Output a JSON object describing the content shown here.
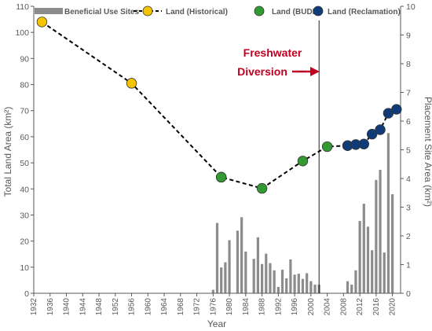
{
  "chart_data": {
    "type": "bar+line",
    "xlabel": "Year",
    "ylabel_left": "Total Land Area (km²)",
    "ylabel_right": "Placement Site Area (km²)",
    "xlim": [
      1932,
      2022
    ],
    "ylim_left": [
      0,
      110
    ],
    "ylim_right": [
      0,
      10
    ],
    "x_ticks": [
      1932,
      1936,
      1940,
      1944,
      1948,
      1952,
      1956,
      1960,
      1964,
      1968,
      1972,
      1976,
      1980,
      1984,
      1988,
      1992,
      1996,
      2000,
      2004,
      2008,
      2012,
      2016,
      2020
    ],
    "y_left_ticks": [
      0,
      10,
      20,
      30,
      40,
      50,
      60,
      70,
      80,
      90,
      100,
      110
    ],
    "y_right_ticks": [
      0,
      1,
      2,
      3,
      4,
      5,
      6,
      7,
      8,
      9,
      10
    ],
    "grid": false,
    "legend_position": "top",
    "legend": [
      "Beneficial Use Sites",
      "Land (Historical)",
      "Land (BUDM)",
      "Land (Reclamation)"
    ],
    "annotation": {
      "line1": "Freshwater",
      "line2": "Diversion",
      "x": 2002
    },
    "colors": {
      "bars": "#8c8c8c",
      "historical": "#f5c400",
      "budm": "#339933",
      "reclamation": "#0f3c78",
      "annotation": "#c00020",
      "axis": "#595959"
    },
    "bars": {
      "name": "Beneficial Use Sites",
      "axis": "right",
      "x": [
        1976,
        1977,
        1978,
        1979,
        1980,
        1981,
        1982,
        1983,
        1984,
        1985,
        1986,
        1987,
        1988,
        1989,
        1990,
        1991,
        1992,
        1993,
        1994,
        1995,
        1996,
        1997,
        1998,
        1999,
        2000,
        2001,
        2002,
        2003,
        2004,
        2005,
        2006,
        2007,
        2008,
        2009,
        2010,
        2011,
        2012,
        2013,
        2014,
        2015,
        2016,
        2017,
        2018,
        2019,
        2020
      ],
      "values": [
        0.12,
        2.45,
        0.9,
        1.08,
        1.85,
        0,
        2.18,
        2.65,
        1.45,
        0,
        1.2,
        1.95,
        1.02,
        1.38,
        1.05,
        0.8,
        0.22,
        0.82,
        0.52,
        1.18,
        0.65,
        0.68,
        0.5,
        0.7,
        0.42,
        0.3,
        0.3,
        0,
        0,
        0,
        0,
        0,
        0,
        0.42,
        0.3,
        0.8,
        2.52,
        3.12,
        2.32,
        1.5,
        3.95,
        4.3,
        1.42,
        5.58,
        3.45
      ]
    },
    "series": [
      {
        "name": "Land (Historical)",
        "axis": "left",
        "x": [
          1934,
          1956,
          1978
        ],
        "y": [
          104,
          80.5,
          44.5
        ]
      },
      {
        "name": "Land (BUDM)",
        "axis": "left",
        "x": [
          1978,
          1988,
          1998,
          2004,
          2009
        ],
        "y": [
          44.5,
          40.2,
          50.7,
          56.2,
          56.6
        ]
      },
      {
        "name": "Land (Reclamation)",
        "axis": "left",
        "x": [
          2009,
          2011,
          2013,
          2015,
          2017,
          2019,
          2021
        ],
        "y": [
          56.6,
          57,
          57.2,
          61,
          62.7,
          69,
          70.5
        ]
      },
      {
        "name": "dashed-trend",
        "axis": "left",
        "x": [
          1934,
          1956,
          1978,
          1988,
          1998,
          2004,
          2009,
          2011,
          2013,
          2015,
          2017,
          2019,
          2021
        ],
        "y": [
          104,
          80.5,
          44.5,
          40.2,
          50.7,
          56.2,
          56.6,
          57,
          57.2,
          61,
          62.7,
          69,
          70.5
        ]
      }
    ]
  }
}
